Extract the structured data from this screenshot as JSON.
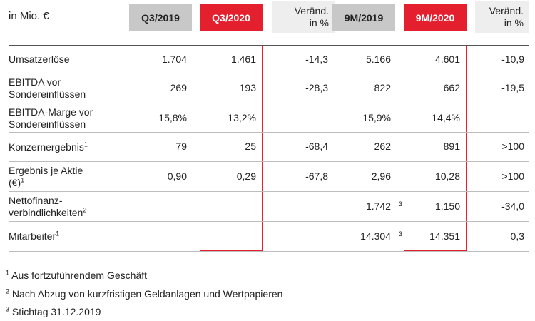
{
  "header": {
    "unit": "in Mio. €",
    "col1": "Q3/2019",
    "col2": "Q3/2020",
    "col3_line1": "Veränd.",
    "col3_line2": "in %",
    "col4": "9M/2019",
    "col5": "9M/2020",
    "col6_line1": "Veränd.",
    "col6_line2": "in %"
  },
  "colors": {
    "accent_red": "#e5202e",
    "header_gray": "#c8c8c8",
    "light_gray": "#eeeeee"
  },
  "rows": [
    {
      "label1": "Umsatzerlöse",
      "label2": "",
      "sup": "",
      "v": [
        "1.704",
        "1.461",
        "-14,3",
        "5.166",
        "4.601",
        "-10,9"
      ],
      "note": ""
    },
    {
      "label1": "EBITDA vor",
      "label2": "Sondereinflüssen",
      "sup": "",
      "v": [
        "269",
        "193",
        "-28,3",
        "822",
        "662",
        "-19,5"
      ],
      "note": ""
    },
    {
      "label1": "EBITDA-Marge vor",
      "label2": "Sondereinflüssen",
      "sup": "",
      "v": [
        "15,8%",
        "13,2%",
        "",
        "15,9%",
        "14,4%",
        ""
      ],
      "note": ""
    },
    {
      "label1": "Konzernergebnis",
      "label2": "",
      "sup": "1",
      "v": [
        "79",
        "25",
        "-68,4",
        "262",
        "891",
        ">100"
      ],
      "note": ""
    },
    {
      "label1": "Ergebnis je Aktie",
      "label2": "(€)",
      "sup": "1",
      "v": [
        "0,90",
        "0,29",
        "-67,8",
        "2,96",
        "10,28",
        ">100"
      ],
      "note": ""
    },
    {
      "label1": "Nettofinanz-",
      "label2": "verbindlichkeiten",
      "sup": "2",
      "v": [
        "",
        "",
        "",
        "1.742",
        "1.150",
        "-34,0"
      ],
      "note": "3"
    },
    {
      "label1": "Mitarbeiter",
      "label2": "",
      "sup": "1",
      "v": [
        "",
        "",
        "",
        "14.304",
        "14.351",
        "0,3"
      ],
      "note": "3"
    }
  ],
  "footnotes": [
    {
      "num": "1",
      "text": "Aus fortzuführendem Geschäft"
    },
    {
      "num": "2",
      "text": "Nach Abzug von kurzfristigen Geldanlagen und Wertpapieren"
    },
    {
      "num": "3",
      "text": "Stichtag 31.12.2019"
    }
  ]
}
